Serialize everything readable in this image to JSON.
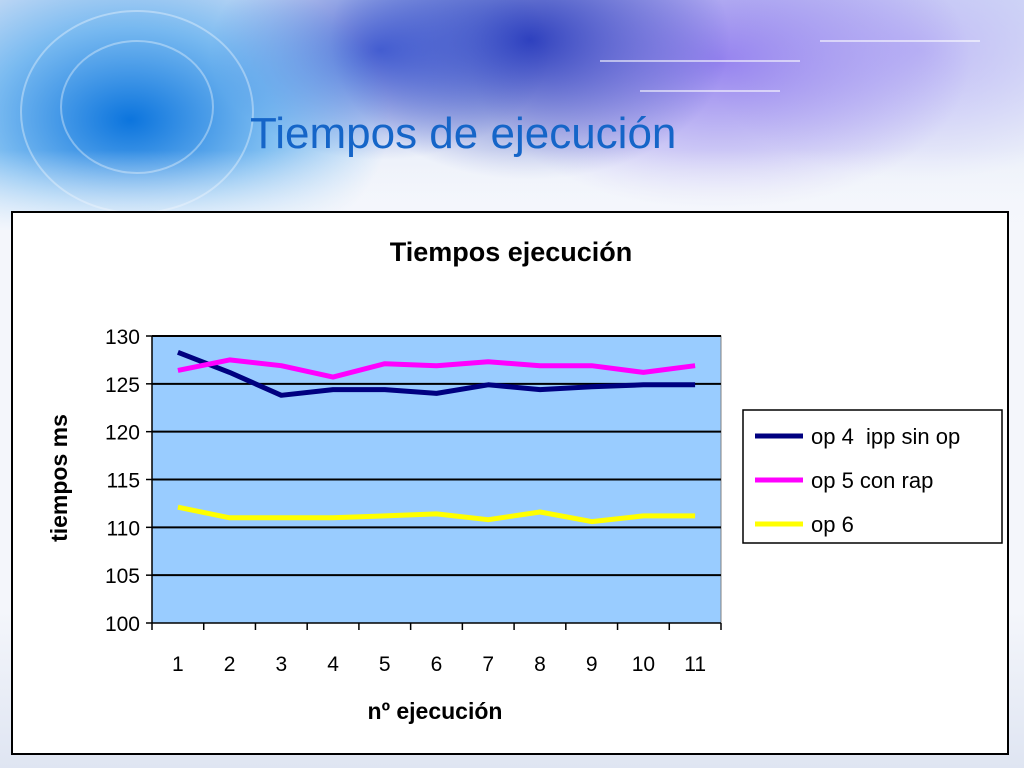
{
  "slide": {
    "title": "Tiempos de ejecución"
  },
  "chart_data": {
    "type": "line",
    "title": "Tiempos ejecución",
    "xlabel": "nº ejecución",
    "ylabel": "tiempos ms",
    "categories": [
      "1",
      "2",
      "3",
      "4",
      "5",
      "6",
      "7",
      "8",
      "9",
      "10",
      "11"
    ],
    "ylim": [
      100,
      130
    ],
    "yticks": [
      100,
      105,
      110,
      115,
      120,
      125,
      130
    ],
    "grid": true,
    "legend_position": "right",
    "plot_background": "#99ccff",
    "series": [
      {
        "name": "op 4  ipp sin op",
        "color": "#000080",
        "values": [
          128.3,
          126.2,
          123.8,
          124.4,
          124.4,
          124.0,
          124.9,
          124.4,
          124.7,
          124.9,
          124.9
        ]
      },
      {
        "name": "op 5 con rap",
        "color": "#ff00ff",
        "values": [
          126.4,
          127.5,
          126.9,
          125.7,
          127.1,
          126.9,
          127.3,
          126.9,
          126.9,
          126.2,
          126.9
        ]
      },
      {
        "name": "op 6",
        "color": "#ffff00",
        "values": [
          112.1,
          111.0,
          111.0,
          111.0,
          111.2,
          111.4,
          110.8,
          111.6,
          110.6,
          111.2,
          111.2
        ]
      }
    ]
  }
}
